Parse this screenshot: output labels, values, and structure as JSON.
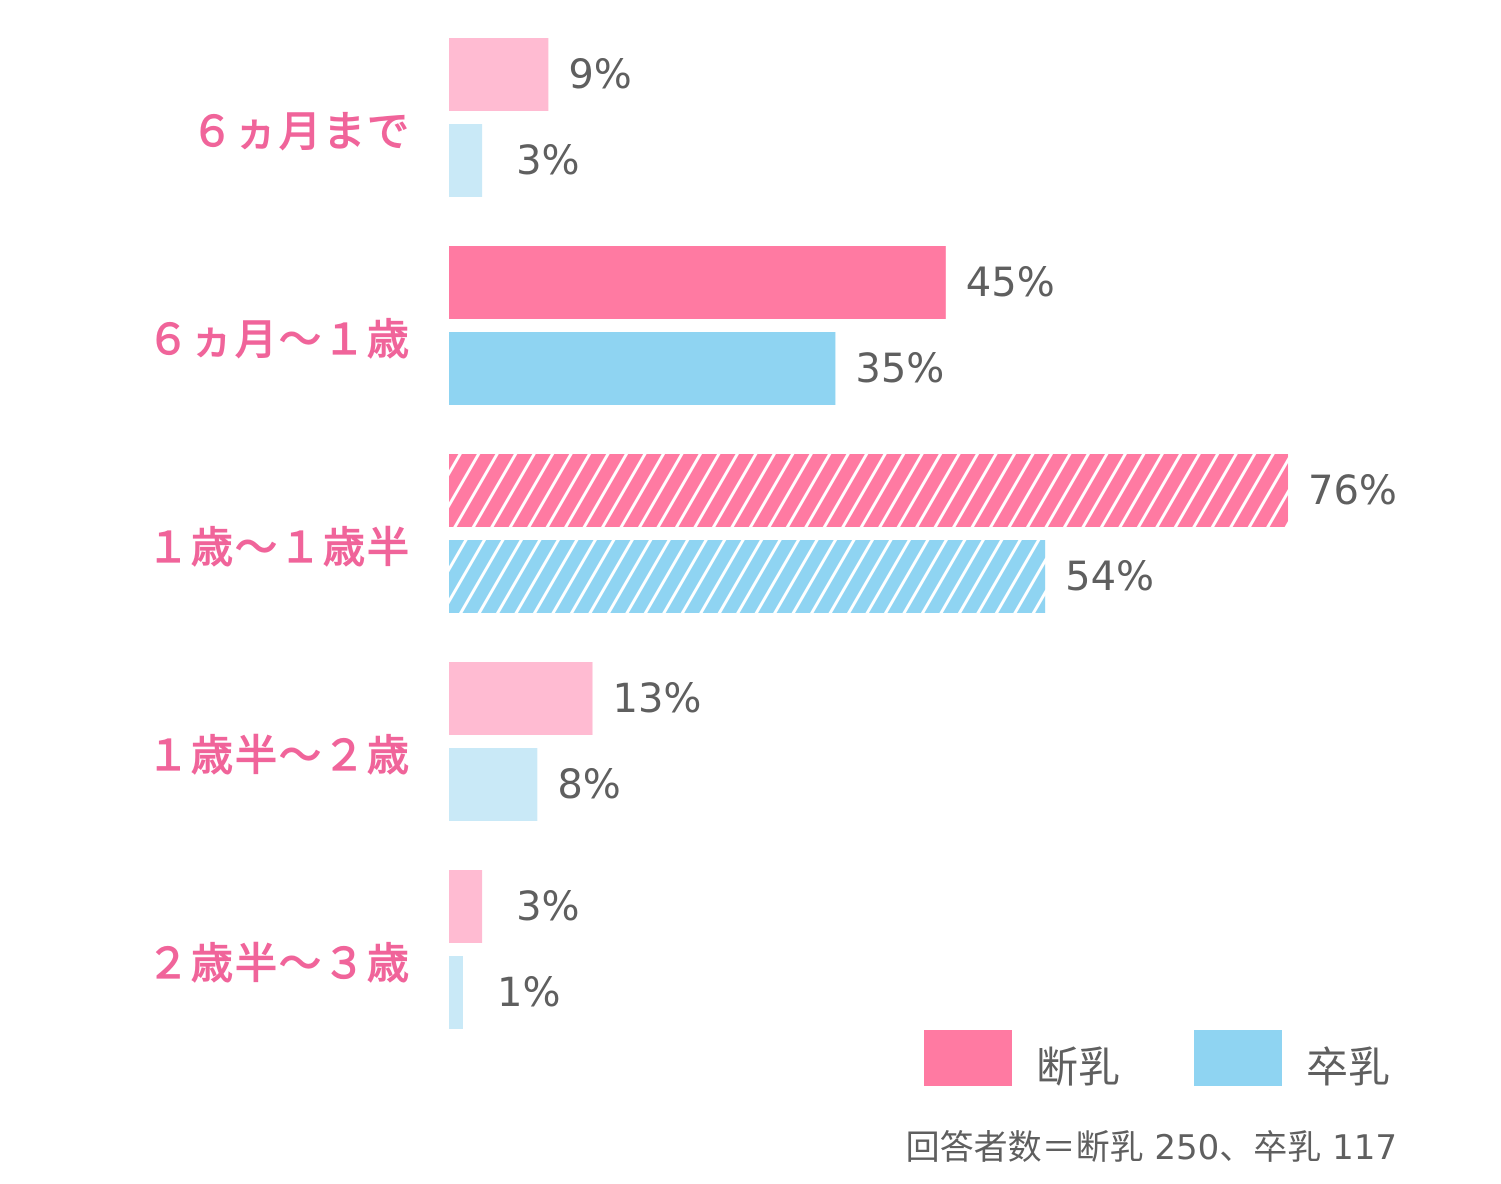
{
  "chart_data": {
    "type": "bar",
    "orientation": "horizontal",
    "categories": [
      "６ヵ月まで",
      "６ヵ月～１歳",
      "１歳～１歳半",
      "１歳半～２歳",
      "２歳半～３歳"
    ],
    "series": [
      {
        "name": "断乳",
        "values": [
          9,
          45,
          76,
          13,
          3
        ],
        "labels": [
          "9%",
          "45%",
          "76%",
          "13%",
          "3%"
        ]
      },
      {
        "name": "卒乳",
        "values": [
          3,
          35,
          54,
          8,
          1
        ],
        "labels": [
          "3%",
          "35%",
          "54%",
          "8%",
          "1%"
        ]
      }
    ],
    "unit": "%",
    "xlim": [
      0,
      80
    ],
    "grid": false,
    "legend_position": "bottom-right",
    "highlight": {
      "strong_categories": [
        1
      ],
      "hatched_categories": [
        2
      ]
    },
    "note": "回答者数＝断乳 250、卒乳 117"
  },
  "colors": {
    "dan_strong": "#ff7aa2",
    "dan_light": "#ffbbd2",
    "sotsu_strong": "#8fd4f2",
    "sotsu_light": "#c9e9f7",
    "category_text": "#f0649a",
    "value_text": "#5f5f5f"
  }
}
